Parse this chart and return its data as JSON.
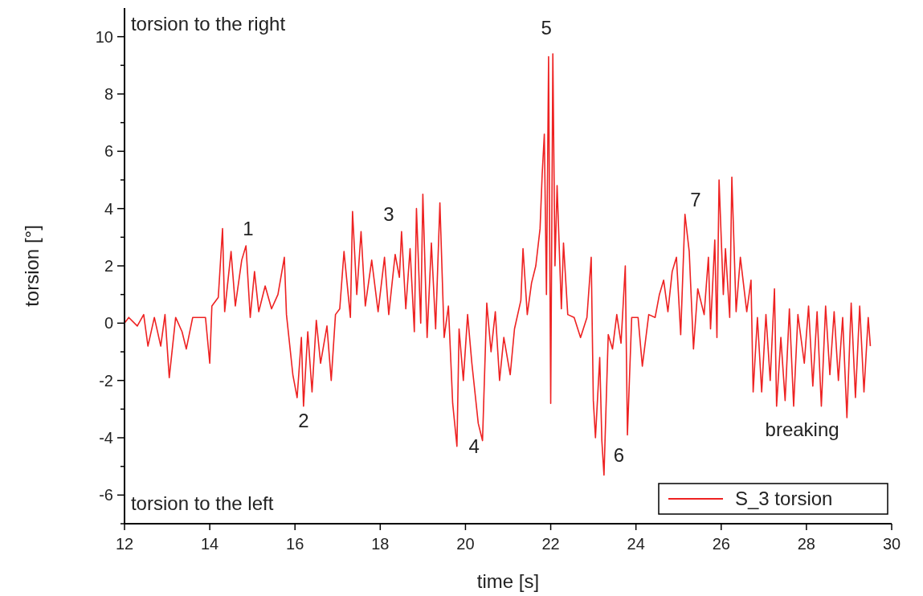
{
  "chart_data": {
    "type": "line",
    "xlabel": "time [s]",
    "ylabel": "torsion [°]",
    "xlim": [
      12,
      30
    ],
    "xticks": [
      12,
      14,
      16,
      18,
      20,
      22,
      24,
      26,
      28,
      30
    ],
    "ylim": [
      -7,
      11
    ],
    "yticks": [
      {
        "value": -7,
        "label": null
      },
      -6,
      {
        "value": -5,
        "label": null
      },
      -4,
      {
        "value": -3,
        "label": null
      },
      -2,
      {
        "value": -1,
        "label": null
      },
      0,
      {
        "value": 1,
        "label": null
      },
      2,
      {
        "value": 3,
        "label": null
      },
      4,
      {
        "value": 5,
        "label": null
      },
      6,
      {
        "value": 7,
        "label": null
      },
      8,
      {
        "value": 9,
        "label": null
      },
      10
    ],
    "grid": false,
    "legend": "bottom right",
    "line_style": "solid",
    "series": [
      {
        "name": "S_3 torsion",
        "color": "#ee2222",
        "x": [
          12.0,
          12.1,
          12.3,
          12.45,
          12.55,
          12.7,
          12.85,
          12.95,
          13.05,
          13.2,
          13.35,
          13.45,
          13.6,
          13.75,
          13.9,
          14.0,
          14.05,
          14.2,
          14.3,
          14.35,
          14.5,
          14.6,
          14.75,
          14.85,
          14.95,
          15.05,
          15.15,
          15.3,
          15.45,
          15.6,
          15.75,
          15.8,
          15.95,
          16.05,
          16.15,
          16.2,
          16.3,
          16.4,
          16.5,
          16.6,
          16.75,
          16.85,
          16.95,
          17.05,
          17.15,
          17.3,
          17.35,
          17.45,
          17.55,
          17.65,
          17.8,
          17.95,
          18.1,
          18.2,
          18.35,
          18.45,
          18.5,
          18.6,
          18.7,
          18.8,
          18.85,
          18.95,
          19.0,
          19.1,
          19.2,
          19.3,
          19.4,
          19.5,
          19.6,
          19.7,
          19.8,
          19.85,
          19.95,
          20.05,
          20.15,
          20.3,
          20.4,
          20.5,
          20.6,
          20.7,
          20.8,
          20.9,
          21.05,
          21.15,
          21.3,
          21.35,
          21.45,
          21.55,
          21.65,
          21.75,
          21.8,
          21.85,
          21.9,
          21.95,
          22.0,
          22.05,
          22.1,
          22.15,
          22.25,
          22.3,
          22.4,
          22.55,
          22.7,
          22.85,
          22.95,
          23.0,
          23.05,
          23.15,
          23.2,
          23.25,
          23.35,
          23.45,
          23.55,
          23.65,
          23.75,
          23.8,
          23.9,
          24.05,
          24.15,
          24.3,
          24.45,
          24.55,
          24.65,
          24.75,
          24.85,
          24.95,
          25.05,
          25.15,
          25.25,
          25.35,
          25.45,
          25.6,
          25.7,
          25.75,
          25.85,
          25.9,
          25.95,
          26.05,
          26.1,
          26.2,
          26.25,
          26.35,
          26.45,
          26.6,
          26.7,
          26.75,
          26.85,
          26.95,
          27.05,
          27.15,
          27.25,
          27.3,
          27.4,
          27.5,
          27.6,
          27.7,
          27.8,
          27.95,
          28.05,
          28.15,
          28.25,
          28.35,
          28.45,
          28.55,
          28.65,
          28.75,
          28.85,
          28.95,
          29.05,
          29.15,
          29.25,
          29.35,
          29.45,
          29.5
        ],
        "values": [
          0.0,
          0.2,
          -0.1,
          0.3,
          -0.8,
          0.2,
          -0.8,
          0.3,
          -1.9,
          0.2,
          -0.3,
          -0.9,
          0.2,
          0.2,
          0.2,
          -1.4,
          0.6,
          0.9,
          3.3,
          0.4,
          2.5,
          0.6,
          2.2,
          2.7,
          0.2,
          1.8,
          0.4,
          1.3,
          0.5,
          1.0,
          2.3,
          0.3,
          -1.8,
          -2.6,
          -0.5,
          -2.9,
          -0.3,
          -2.4,
          0.1,
          -1.4,
          -0.1,
          -2.0,
          0.3,
          0.5,
          2.5,
          0.2,
          3.9,
          1.0,
          3.2,
          0.6,
          2.2,
          0.4,
          2.3,
          0.3,
          2.4,
          1.6,
          3.2,
          0.5,
          2.6,
          -0.3,
          4.0,
          0.0,
          4.5,
          -0.5,
          2.8,
          -0.2,
          4.2,
          -0.5,
          0.6,
          -2.8,
          -4.3,
          -0.2,
          -2.0,
          0.3,
          -1.4,
          -3.5,
          -4.1,
          0.7,
          -1.0,
          0.4,
          -2.0,
          -0.5,
          -1.8,
          -0.2,
          0.8,
          2.6,
          0.3,
          1.4,
          2.0,
          3.3,
          5.2,
          6.6,
          1.0,
          9.3,
          -2.8,
          9.4,
          2.0,
          4.8,
          0.5,
          2.8,
          0.3,
          0.2,
          -0.5,
          0.2,
          2.3,
          -2.7,
          -4.0,
          -1.2,
          -4.1,
          -5.3,
          -0.4,
          -0.9,
          0.3,
          -0.7,
          2.0,
          -3.9,
          0.2,
          0.2,
          -1.5,
          0.3,
          0.2,
          1.0,
          1.5,
          0.4,
          1.8,
          2.3,
          -0.4,
          3.8,
          2.5,
          -0.9,
          1.2,
          0.3,
          2.3,
          -0.2,
          2.9,
          -0.5,
          5.0,
          1.0,
          2.6,
          0.2,
          5.1,
          0.4,
          2.3,
          0.4,
          1.5,
          -2.4,
          0.2,
          -2.4,
          0.3,
          -2.0,
          1.2,
          -2.9,
          -0.5,
          -2.7,
          0.5,
          -2.9,
          0.3,
          -1.4,
          0.6,
          -2.2,
          0.4,
          -2.9,
          0.6,
          -1.8,
          0.4,
          -2.0,
          0.2,
          -3.3,
          0.7,
          -2.6,
          0.6,
          -2.4,
          0.2,
          -0.8
        ]
      }
    ],
    "annotations": [
      "torsion to the right",
      "torsion to the left",
      "1",
      "2",
      "3",
      "4",
      "5",
      "6",
      "7",
      "breaking"
    ]
  }
}
